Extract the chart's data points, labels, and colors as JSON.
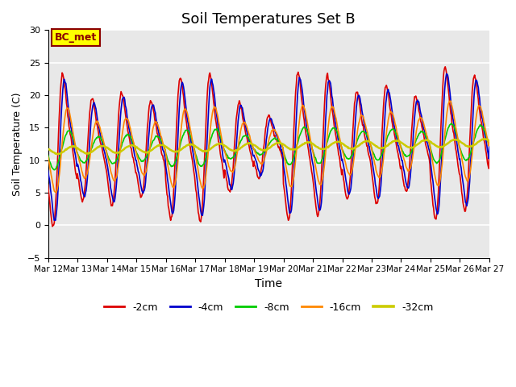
{
  "title": "Soil Temperatures Set B",
  "xlabel": "Time",
  "ylabel": "Soil Temperature (C)",
  "ylim": [
    -5,
    30
  ],
  "bg_color": "#e8e8e8",
  "fig_color": "#ffffff",
  "annotation_text": "BC_met",
  "annotation_box_color": "#ffff00",
  "annotation_box_edge": "#8b0000",
  "legend_labels": [
    "-2cm",
    "-4cm",
    "-8cm",
    "-16cm",
    "-32cm"
  ],
  "line_colors": [
    "#dd0000",
    "#0000cc",
    "#00cc00",
    "#ff8800",
    "#cccc00"
  ],
  "line_widths": [
    1.2,
    1.2,
    1.2,
    1.2,
    1.8
  ],
  "yticks": [
    -5,
    0,
    5,
    10,
    15,
    20,
    25,
    30
  ],
  "title_fontsize": 13
}
